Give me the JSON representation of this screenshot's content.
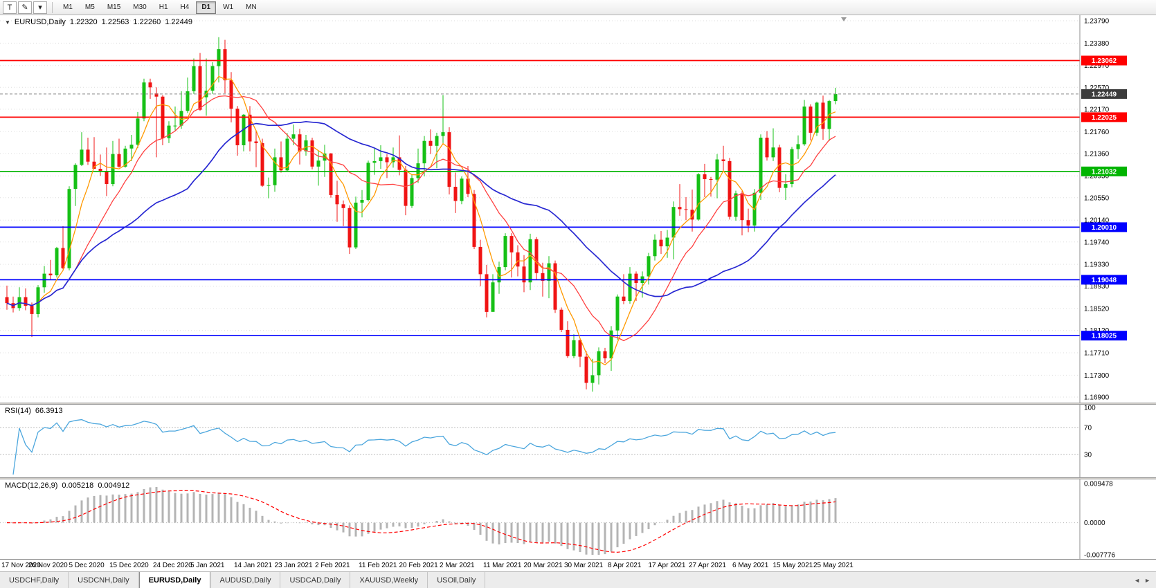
{
  "toolbar": {
    "tools": [
      {
        "name": "text-tool",
        "label": "T"
      },
      {
        "name": "draw-tool",
        "label": "✎"
      },
      {
        "name": "tools-dropdown",
        "label": "▾"
      }
    ],
    "timeframes": [
      {
        "label": "M1",
        "active": false
      },
      {
        "label": "M5",
        "active": false
      },
      {
        "label": "M15",
        "active": false
      },
      {
        "label": "M30",
        "active": false
      },
      {
        "label": "H1",
        "active": false
      },
      {
        "label": "H4",
        "active": false
      },
      {
        "label": "D1",
        "active": true
      },
      {
        "label": "W1",
        "active": false
      },
      {
        "label": "MN",
        "active": false
      }
    ]
  },
  "icons": {
    "collapse": "▼",
    "tab_scroll_left": "◄",
    "tab_scroll_right": "►"
  },
  "chart": {
    "title": {
      "symbol": "EURUSD,Daily",
      "open": "1.22320",
      "high": "1.22563",
      "low": "1.22260",
      "close": "1.22449"
    },
    "colors": {
      "up": "#16c016",
      "down": "#f01414",
      "bid": "#3c3c3c"
    },
    "y_axis": {
      "min": 1.169,
      "max": 1.2379,
      "labels": [
        "1.23790",
        "1.23380",
        "1.22970",
        "1.22570",
        "1.22170",
        "1.21760",
        "1.21360",
        "1.20950",
        "1.20550",
        "1.20140",
        "1.19740",
        "1.19330",
        "1.18930",
        "1.18520",
        "1.18120",
        "1.17710",
        "1.17300",
        "1.16900"
      ]
    },
    "levels": [
      {
        "label": "1.23062",
        "price": 1.23062,
        "color": "#ff0000"
      },
      {
        "label": "1.22025",
        "price": 1.22025,
        "color": "#ff0000"
      },
      {
        "label": "1.21032",
        "price": 1.21032,
        "color": "#00b400"
      },
      {
        "label": "1.20010",
        "price": 1.2001,
        "color": "#0000ff"
      },
      {
        "label": "1.19048",
        "price": 1.19048,
        "color": "#0000ff"
      },
      {
        "label": "1.18025",
        "price": 1.18025,
        "color": "#0000ff"
      }
    ],
    "bid": {
      "label": "1.22449",
      "price": 1.22449
    },
    "moving_averages": [
      {
        "name": "ma-fast-line",
        "period": 5,
        "color": "#ff9900",
        "width": 1.3
      },
      {
        "name": "ma-mid-line",
        "period": 12,
        "color": "#ff4040",
        "width": 1.3
      },
      {
        "name": "ma-slow-line",
        "period": 30,
        "color": "#2828d2",
        "width": 1.7
      }
    ],
    "x_labels": [
      {
        "label": "17 Nov 2020",
        "index": 0
      },
      {
        "label": "26 Nov 2020",
        "index": 7
      },
      {
        "label": "5 Dec 2020",
        "index": 13.5
      },
      {
        "label": "15 Dec 2020",
        "index": 20
      },
      {
        "label": "24 Dec 2020",
        "index": 27
      },
      {
        "label": "5 Jan 2021",
        "index": 33
      },
      {
        "label": "14 Jan 2021",
        "index": 40
      },
      {
        "label": "23 Jan 2021",
        "index": 46.5
      },
      {
        "label": "2 Feb 2021",
        "index": 53
      },
      {
        "label": "11 Feb 2021",
        "index": 60
      },
      {
        "label": "20 Feb 2021",
        "index": 66.5
      },
      {
        "label": "2 Mar 2021",
        "index": 73
      },
      {
        "label": "11 Mar 2021",
        "index": 80
      },
      {
        "label": "20 Mar 2021",
        "index": 86.5
      },
      {
        "label": "30 Mar 2021",
        "index": 93
      },
      {
        "label": "8 Apr 2021",
        "index": 100
      },
      {
        "label": "17 Apr 2021",
        "index": 106.5
      },
      {
        "label": "27 Apr 2021",
        "index": 113
      },
      {
        "label": "6 May 2021",
        "index": 120
      },
      {
        "label": "15 May 2021",
        "index": 126.5
      },
      {
        "label": "25 May 2021",
        "index": 133
      }
    ],
    "candles": [
      [
        1.1873,
        1.1894,
        1.185,
        1.1862
      ],
      [
        1.1862,
        1.1874,
        1.1845,
        1.1853
      ],
      [
        1.1853,
        1.1891,
        1.1848,
        1.1873
      ],
      [
        1.1873,
        1.1889,
        1.1849,
        1.1857
      ],
      [
        1.1857,
        1.1863,
        1.18,
        1.1842
      ],
      [
        1.1842,
        1.1895,
        1.1836,
        1.1891
      ],
      [
        1.1891,
        1.193,
        1.1881,
        1.1916
      ],
      [
        1.1916,
        1.1941,
        1.1905,
        1.1913
      ],
      [
        1.1913,
        1.1965,
        1.1909,
        1.1963
      ],
      [
        1.1963,
        1.2003,
        1.1924,
        1.1926
      ],
      [
        1.1926,
        1.2076,
        1.1922,
        1.2071
      ],
      [
        1.2071,
        1.2118,
        1.204,
        1.2115
      ],
      [
        1.2115,
        1.2175,
        1.2113,
        1.2143
      ],
      [
        1.2143,
        1.2165,
        1.2115,
        1.2121
      ],
      [
        1.2121,
        1.2166,
        1.2111,
        1.2108
      ],
      [
        1.2108,
        1.2134,
        1.2095,
        1.2104
      ],
      [
        1.2104,
        1.2147,
        1.2058,
        1.208
      ],
      [
        1.208,
        1.2159,
        1.2076,
        1.2135
      ],
      [
        1.2135,
        1.2163,
        1.211,
        1.2112
      ],
      [
        1.2112,
        1.215,
        1.211,
        1.2145
      ],
      [
        1.2145,
        1.217,
        1.2122,
        1.2152
      ],
      [
        1.2152,
        1.2212,
        1.2146,
        1.22
      ],
      [
        1.22,
        1.2273,
        1.2195,
        1.2266
      ],
      [
        1.2266,
        1.2273,
        1.2236,
        1.2257
      ],
      [
        1.2246,
        1.2257,
        1.2129,
        1.224
      ],
      [
        1.224,
        1.2243,
        1.2151,
        1.2164
      ],
      [
        1.2164,
        1.2195,
        1.2155,
        1.2187
      ],
      [
        1.2187,
        1.2222,
        1.2178,
        1.2187
      ],
      [
        1.2187,
        1.225,
        1.2181,
        1.2214
      ],
      [
        1.2214,
        1.2275,
        1.221,
        1.225
      ],
      [
        1.225,
        1.231,
        1.2245,
        1.2296
      ],
      [
        1.2296,
        1.232,
        1.2214,
        1.2216
      ],
      [
        1.2239,
        1.231,
        1.2205,
        1.2251
      ],
      [
        1.2251,
        1.2303,
        1.2245,
        1.2296
      ],
      [
        1.2296,
        1.2349,
        1.2266,
        1.2327
      ],
      [
        1.2327,
        1.2344,
        1.2246,
        1.227
      ],
      [
        1.227,
        1.2285,
        1.2193,
        1.2218
      ],
      [
        1.2218,
        1.2223,
        1.2132,
        1.2151
      ],
      [
        1.2151,
        1.2208,
        1.214,
        1.2207
      ],
      [
        1.2207,
        1.2223,
        1.214,
        1.2158
      ],
      [
        1.2158,
        1.2177,
        1.2111,
        1.2155
      ],
      [
        1.2155,
        1.2163,
        1.2075,
        1.2077
      ],
      [
        1.2077,
        1.2092,
        1.2054,
        1.2078
      ],
      [
        1.2078,
        1.2145,
        1.2066,
        1.2129
      ],
      [
        1.2129,
        1.2158,
        1.2101,
        1.2105
      ],
      [
        1.2105,
        1.2173,
        1.2103,
        1.2163
      ],
      [
        1.2163,
        1.2189,
        1.2151,
        1.2171
      ],
      [
        1.2171,
        1.2181,
        1.2116,
        1.214
      ],
      [
        1.214,
        1.217,
        1.2132,
        1.216
      ],
      [
        1.216,
        1.2165,
        1.2107,
        1.2112
      ],
      [
        1.2112,
        1.2141,
        1.2077,
        1.2123
      ],
      [
        1.2123,
        1.2152,
        1.2093,
        1.2136
      ],
      [
        1.2136,
        1.2137,
        1.2055,
        1.206
      ],
      [
        1.206,
        1.2086,
        1.2011,
        1.2043
      ],
      [
        1.2043,
        1.205,
        1.2003,
        1.2036
      ],
      [
        1.2036,
        1.2041,
        1.1952,
        1.1964
      ],
      [
        1.1964,
        1.2057,
        1.1961,
        1.2046
      ],
      [
        1.2046,
        1.2069,
        1.2019,
        1.2051
      ],
      [
        1.2051,
        1.2123,
        1.2048,
        1.2119
      ],
      [
        1.2119,
        1.2145,
        1.2097,
        1.2122
      ],
      [
        1.2122,
        1.2151,
        1.2108,
        1.2129
      ],
      [
        1.2129,
        1.2135,
        1.2091,
        1.212
      ],
      [
        1.212,
        1.2147,
        1.211,
        1.2129
      ],
      [
        1.2129,
        1.2169,
        1.2096,
        1.2106
      ],
      [
        1.2106,
        1.2113,
        1.2023,
        1.204
      ],
      [
        1.204,
        1.2097,
        1.2036,
        1.2091
      ],
      [
        1.2091,
        1.2145,
        1.2082,
        1.2118
      ],
      [
        1.2118,
        1.2168,
        1.2094,
        1.2159
      ],
      [
        1.2159,
        1.218,
        1.2135,
        1.215
      ],
      [
        1.215,
        1.2174,
        1.2109,
        1.2168
      ],
      [
        1.2168,
        1.2243,
        1.2155,
        1.2175
      ],
      [
        1.2175,
        1.2184,
        1.2061,
        1.2075
      ],
      [
        1.2075,
        1.2101,
        1.2027,
        1.2049
      ],
      [
        1.2049,
        1.2094,
        1.2043,
        1.209
      ],
      [
        1.209,
        1.2113,
        1.2056,
        1.2062
      ],
      [
        1.2062,
        1.2069,
        1.1961,
        1.1965
      ],
      [
        1.1965,
        1.1978,
        1.1893,
        1.1915
      ],
      [
        1.1915,
        1.1932,
        1.1836,
        1.1846
      ],
      [
        1.1846,
        1.1915,
        1.1846,
        1.19
      ],
      [
        1.19,
        1.1938,
        1.1879,
        1.1928
      ],
      [
        1.1928,
        1.199,
        1.1922,
        1.1985
      ],
      [
        1.1985,
        1.199,
        1.1909,
        1.1955
      ],
      [
        1.1955,
        1.1968,
        1.1911,
        1.1929
      ],
      [
        1.1929,
        1.195,
        1.1882,
        1.19
      ],
      [
        1.19,
        1.1989,
        1.1886,
        1.1979
      ],
      [
        1.1979,
        1.1983,
        1.1906,
        1.1917
      ],
      [
        1.1917,
        1.1936,
        1.1874,
        1.1903
      ],
      [
        1.1903,
        1.1948,
        1.1871,
        1.1935
      ],
      [
        1.1935,
        1.194,
        1.1844,
        1.185
      ],
      [
        1.185,
        1.1854,
        1.1809,
        1.1813
      ],
      [
        1.1813,
        1.1829,
        1.1762,
        1.1765
      ],
      [
        1.1765,
        1.1805,
        1.1761,
        1.1794
      ],
      [
        1.1794,
        1.1796,
        1.1745,
        1.1764
      ],
      [
        1.1764,
        1.1774,
        1.1704,
        1.1716
      ],
      [
        1.1716,
        1.176,
        1.17,
        1.173
      ],
      [
        1.173,
        1.1781,
        1.1713,
        1.1774
      ],
      [
        1.1774,
        1.178,
        1.1752,
        1.1761
      ],
      [
        1.1761,
        1.182,
        1.1738,
        1.1812
      ],
      [
        1.1812,
        1.1878,
        1.1795,
        1.1874
      ],
      [
        1.1874,
        1.1915,
        1.186,
        1.1866
      ],
      [
        1.1866,
        1.1928,
        1.1861,
        1.1916
      ],
      [
        1.1916,
        1.192,
        1.1866,
        1.1899
      ],
      [
        1.1899,
        1.192,
        1.1872,
        1.1911
      ],
      [
        1.1911,
        1.1954,
        1.1896,
        1.1948
      ],
      [
        1.1948,
        1.1988,
        1.194,
        1.1978
      ],
      [
        1.1978,
        1.1994,
        1.1952,
        1.1966
      ],
      [
        1.1966,
        1.1996,
        1.1945,
        1.1982
      ],
      [
        1.1982,
        1.2048,
        1.1942,
        1.2038
      ],
      [
        1.2038,
        1.208,
        1.2022,
        1.2034
      ],
      [
        1.2034,
        1.2056,
        1.2014,
        1.2033
      ],
      [
        1.2033,
        1.207,
        1.1993,
        1.2015
      ],
      [
        1.2015,
        1.21,
        1.2013,
        1.2098
      ],
      [
        1.2098,
        1.2117,
        1.2056,
        1.2089
      ],
      [
        1.2089,
        1.2093,
        1.2057,
        1.2088
      ],
      [
        1.2088,
        1.2135,
        1.2054,
        1.2125
      ],
      [
        1.2125,
        1.215,
        1.2103,
        1.2122
      ],
      [
        1.2122,
        1.2128,
        1.2015,
        1.202
      ],
      [
        1.202,
        1.2068,
        1.2013,
        1.2063
      ],
      [
        1.2063,
        1.2067,
        1.1986,
        1.2014
      ],
      [
        1.2014,
        1.2035,
        1.1992,
        1.2004
      ],
      [
        1.2004,
        1.2071,
        1.1993,
        1.2064
      ],
      [
        1.2064,
        1.2171,
        1.2051,
        1.2165
      ],
      [
        1.2165,
        1.2177,
        1.2123,
        1.2129
      ],
      [
        1.2129,
        1.2182,
        1.2122,
        1.2147
      ],
      [
        1.2147,
        1.2152,
        1.2065,
        1.2073
      ],
      [
        1.2073,
        1.2098,
        1.2051,
        1.208
      ],
      [
        1.208,
        1.2148,
        1.2074,
        1.2144
      ],
      [
        1.2144,
        1.2169,
        1.2126,
        1.2153
      ],
      [
        1.2153,
        1.2234,
        1.215,
        1.2222
      ],
      [
        1.2222,
        1.2226,
        1.216,
        1.2174
      ],
      [
        1.2174,
        1.2231,
        1.2168,
        1.2229
      ],
      [
        1.2229,
        1.2242,
        1.2161,
        1.2181
      ],
      [
        1.2181,
        1.2234,
        1.2159,
        1.2232
      ],
      [
        1.2232,
        1.22563,
        1.2226,
        1.22449
      ]
    ]
  },
  "rsi": {
    "label": "RSI(14)",
    "value": "66.3913",
    "period": 14,
    "levels": [
      70,
      30
    ],
    "axis_labels": [
      "100",
      "70",
      "30"
    ],
    "color": "#4ba6dd"
  },
  "macd": {
    "label": "MACD(12,26,9)",
    "value_main": "0.005218",
    "value_signal": "0.004912",
    "fast": 12,
    "slow": 26,
    "signal": 9,
    "max": 0.009478,
    "min": -0.007776,
    "axis_labels": [
      "0.009478",
      "0.0000",
      "-0.007776"
    ],
    "histogram_color": "#b4b4b4",
    "signal_color": "#ff0000"
  },
  "tabs": {
    "items": [
      {
        "label": "USDCHF,Daily",
        "active": false
      },
      {
        "label": "USDCNH,Daily",
        "active": false
      },
      {
        "label": "EURUSD,Daily",
        "active": true
      },
      {
        "label": "AUDUSD,Daily",
        "active": false
      },
      {
        "label": "USDCAD,Daily",
        "active": false
      },
      {
        "label": "XAUUSD,Weekly",
        "active": false
      },
      {
        "label": "USOil,Daily",
        "active": false
      }
    ]
  }
}
